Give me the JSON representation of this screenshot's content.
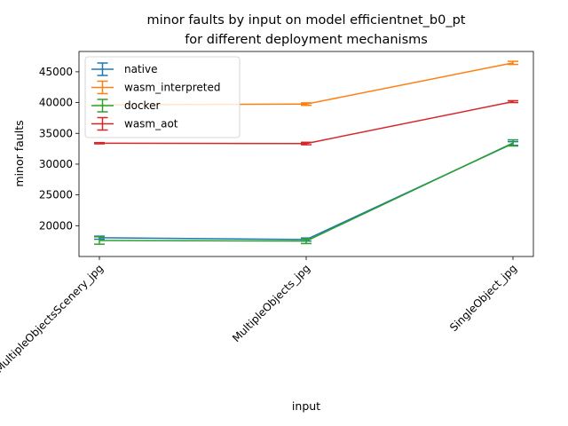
{
  "chart_data": {
    "type": "line",
    "title_lines": [
      "minor faults by input on model efficientnet_b0_pt",
      "for different deployment mechanisms"
    ],
    "xlabel": "input",
    "ylabel": "minor faults",
    "categories": [
      "MultipleObjectsScenery_jpg",
      "MultipleObjects_jpg",
      "SingleObject_jpg"
    ],
    "ylim": [
      15000,
      48300
    ],
    "yticks": [
      20000,
      25000,
      30000,
      35000,
      40000,
      45000
    ],
    "grid": false,
    "legend_position": "top-left",
    "series": [
      {
        "name": "native",
        "color": "#1f77b4",
        "values": [
          18050,
          17750,
          33350
        ],
        "errors": [
          250,
          250,
          300
        ]
      },
      {
        "name": "wasm_interpreted",
        "color": "#ff7f0e",
        "values": [
          39650,
          39750,
          46450
        ],
        "errors": [
          0,
          200,
          250
        ]
      },
      {
        "name": "docker",
        "color": "#2ca02c",
        "values": [
          17600,
          17500,
          33450
        ],
        "errors": [
          600,
          400,
          500
        ]
      },
      {
        "name": "wasm_aot",
        "color": "#d62728",
        "values": [
          33400,
          33350,
          40150
        ],
        "errors": [
          100,
          200,
          150
        ]
      }
    ]
  }
}
